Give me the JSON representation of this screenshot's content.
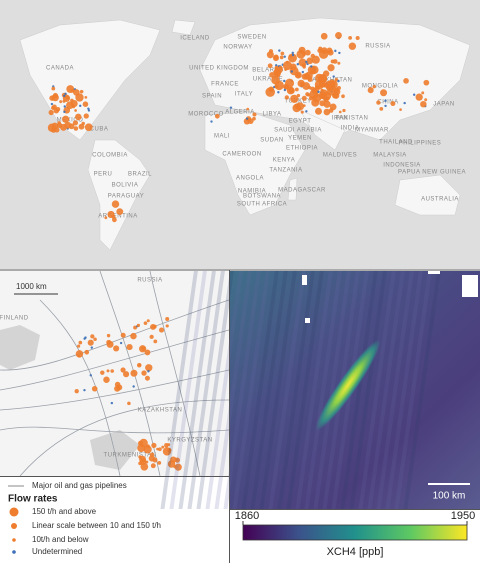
{
  "world_map": {
    "country_labels": [
      "CANADA",
      "ICELAND",
      "NORWAY",
      "SWEDEN",
      "RUSSIA",
      "UNITED KINGDOM",
      "FRANCE",
      "BELARUS",
      "UKRAINE",
      "KAZAKHSTAN",
      "MONGOLIA",
      "CHINA",
      "JAPAN",
      "SPAIN",
      "ITALY",
      "TURKEY",
      "MOROCCO",
      "ALGERIA",
      "LIBYA",
      "EGYPT",
      "SAUDI ARABIA",
      "IRAN",
      "PAKISTAN",
      "INDIA",
      "MYANMAR",
      "THAILAND",
      "PHILIPPINES",
      "CUBA",
      "MEXICO",
      "COLOMBIA",
      "PERU",
      "BRAZIL",
      "BOLIVIA",
      "PARAGUAY",
      "ARGENTINA",
      "MALI",
      "SUDAN",
      "ETHIOPIA",
      "CAMEROON",
      "KENYA",
      "TANZANIA",
      "YEMEN",
      "MALDIVES",
      "MALAYSIA",
      "INDONESIA",
      "PAPUA NEW GUINEA",
      "ANGOLA",
      "NAMIBIA",
      "BOTSWANA",
      "SOUTH AFRICA",
      "MADAGASCAR",
      "AUSTRALIA"
    ]
  },
  "zoom_map": {
    "scale_bar": "1000 km",
    "country_labels": [
      "FINLAND",
      "RUSSIA",
      "KAZAKHSTAN",
      "KYRGYZSTAN",
      "TURKMENISTAN"
    ]
  },
  "legend": {
    "pipelines": "Major oil and gas pipelines",
    "title": "Flow rates",
    "items": [
      "150 t/h and above",
      "Linear scale between 10 and 150 t/h",
      "10t/h and below",
      "Undetermined"
    ]
  },
  "satellite": {
    "scale_bar": "100 km",
    "colorbar": {
      "label": "XCH4 [ppb]",
      "lim": [
        1860,
        1950
      ],
      "ticks": [
        1860,
        1950
      ]
    }
  }
}
